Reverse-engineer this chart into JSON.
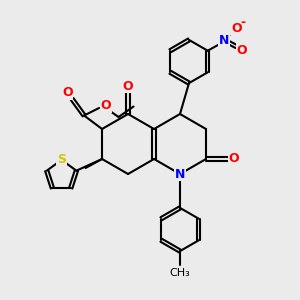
{
  "bg_color": "#ebebeb",
  "atom_colors": {
    "O": "#ff0000",
    "N": "#0000ff",
    "S": "#cccc00",
    "C": "#000000"
  },
  "bond_color": "#000000",
  "bond_width": 1.5,
  "dbo": 0.055,
  "fig_size": [
    3.0,
    3.0
  ],
  "dpi": 100,
  "xlim": [
    0,
    10
  ],
  "ylim": [
    0,
    10
  ]
}
